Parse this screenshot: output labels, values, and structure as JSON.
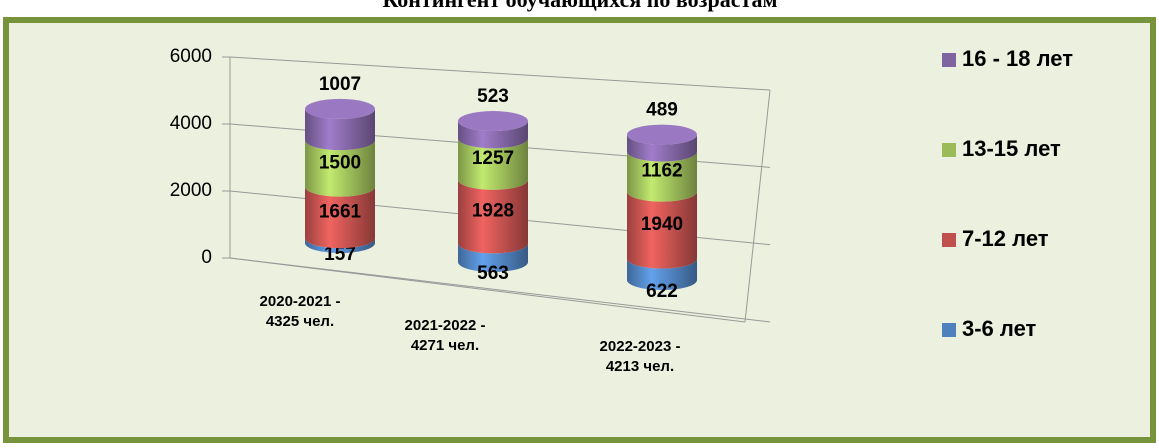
{
  "chart_data": {
    "type": "bar3d_stacked",
    "title": "Контингент обучающихся по возрастам",
    "categories": [
      "2020-2021 -\n4325 чел.",
      "2021-2022 -\n4271 чел.",
      "2022-2023 -\n4213 чел."
    ],
    "series": [
      {
        "name": "3-6 лет",
        "color": "#4f81bd",
        "values": [
          157,
          563,
          622
        ]
      },
      {
        "name": "7-12 лет",
        "color": "#c0504d",
        "values": [
          1661,
          1928,
          1940
        ]
      },
      {
        "name": "13-15 лет",
        "color": "#9bbb59",
        "values": [
          1500,
          1257,
          1162
        ]
      },
      {
        "name": "16 - 18 лет",
        "color": "#8064a2",
        "values": [
          1007,
          523,
          489
        ]
      }
    ],
    "ylim": [
      0,
      6000
    ],
    "yticks": [
      0,
      2000,
      4000,
      6000
    ],
    "grid": true,
    "legend": "right"
  }
}
